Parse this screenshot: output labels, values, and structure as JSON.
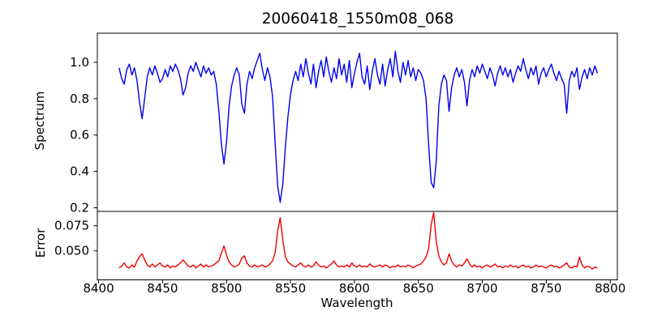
{
  "figure": {
    "background": "#ffffff",
    "frame_color": "#000000",
    "text_color": "#000000"
  },
  "chart_data": {
    "type": "line",
    "title": "20060418_1550m08_068",
    "xlabel": "Wavelength",
    "grid": false,
    "legend": "none",
    "xlim": [
      8399,
      8805.6
    ],
    "xticks": [
      8400,
      8450,
      8500,
      8550,
      8600,
      8650,
      8700,
      8750,
      8800
    ],
    "x_start": 8416,
    "x_step": 2,
    "x_end": 8790,
    "panels": [
      {
        "name": "spectrum",
        "ylabel": "Spectrum",
        "color": "#0000ee",
        "ylim": [
          0.18,
          1.16
        ],
        "yticks": [
          1.0,
          0.8,
          0.6,
          0.4,
          0.2
        ],
        "ytick_labels": [
          "1.0",
          "0.8",
          "0.6",
          "0.4",
          "0.2"
        ],
        "absorption_line_centers": [
          8434,
          8466,
          8498,
          8513,
          8542,
          8662,
          8674,
          8688,
          8766
        ],
        "values": [
          0.97,
          0.91,
          0.88,
          0.96,
          0.99,
          0.93,
          0.97,
          0.9,
          0.78,
          0.69,
          0.8,
          0.92,
          0.97,
          0.93,
          0.98,
          0.94,
          0.89,
          0.91,
          0.96,
          0.92,
          0.98,
          0.95,
          0.99,
          0.96,
          0.91,
          0.82,
          0.86,
          0.94,
          0.98,
          0.95,
          1.0,
          0.96,
          0.92,
          0.98,
          0.94,
          0.97,
          0.93,
          0.95,
          0.88,
          0.73,
          0.55,
          0.44,
          0.56,
          0.76,
          0.87,
          0.93,
          0.97,
          0.93,
          0.77,
          0.72,
          0.88,
          0.95,
          0.91,
          0.97,
          1.01,
          1.05,
          0.96,
          0.9,
          0.97,
          0.92,
          0.81,
          0.56,
          0.32,
          0.23,
          0.33,
          0.53,
          0.7,
          0.82,
          0.9,
          0.95,
          0.9,
          0.99,
          0.92,
          1.02,
          0.94,
          0.88,
          0.99,
          0.86,
          0.95,
          1.01,
          0.92,
          1.03,
          0.95,
          0.89,
          0.97,
          0.91,
          1.02,
          0.93,
          0.99,
          0.89,
          1.01,
          0.86,
          0.94,
          1.0,
          1.05,
          0.92,
          0.88,
          0.98,
          0.85,
          0.95,
          1.02,
          0.93,
          0.88,
          0.99,
          0.87,
          0.96,
          1.02,
          0.92,
          1.06,
          0.95,
          0.89,
          1.0,
          0.93,
          1.01,
          0.92,
          0.97,
          0.9,
          0.96,
          0.94,
          0.9,
          0.8,
          0.55,
          0.34,
          0.31,
          0.46,
          0.76,
          0.88,
          0.93,
          0.9,
          0.73,
          0.86,
          0.93,
          0.97,
          0.92,
          0.96,
          0.89,
          0.76,
          0.9,
          0.96,
          0.92,
          0.98,
          0.94,
          0.99,
          0.95,
          0.91,
          0.97,
          0.93,
          0.87,
          0.94,
          0.98,
          0.93,
          0.97,
          0.92,
          0.96,
          0.89,
          0.94,
          0.98,
          0.95,
          1.02,
          0.96,
          0.91,
          0.97,
          0.93,
          0.98,
          0.88,
          0.94,
          0.97,
          0.92,
          0.96,
          0.99,
          0.94,
          0.9,
          0.95,
          0.91,
          0.88,
          0.72,
          0.9,
          0.95,
          0.92,
          0.97,
          0.85,
          0.92,
          0.96,
          0.91,
          0.97,
          0.93,
          0.98,
          0.94
        ]
      },
      {
        "name": "error",
        "ylabel": "Error",
        "color": "#ee0000",
        "ylim": [
          0.0212,
          0.0892
        ],
        "yticks": [
          0.075,
          0.05
        ],
        "ytick_labels": [
          "0.075",
          "0.050"
        ],
        "peak_centers": [
          8434,
          8498,
          8542,
          8662,
          8776
        ],
        "values": [
          0.033,
          0.035,
          0.038,
          0.034,
          0.033,
          0.036,
          0.034,
          0.04,
          0.044,
          0.047,
          0.041,
          0.036,
          0.034,
          0.037,
          0.034,
          0.036,
          0.038,
          0.035,
          0.034,
          0.036,
          0.033,
          0.035,
          0.034,
          0.036,
          0.038,
          0.041,
          0.038,
          0.035,
          0.034,
          0.036,
          0.033,
          0.035,
          0.037,
          0.034,
          0.036,
          0.034,
          0.035,
          0.036,
          0.038,
          0.04,
          0.048,
          0.055,
          0.046,
          0.039,
          0.036,
          0.034,
          0.035,
          0.037,
          0.043,
          0.045,
          0.038,
          0.035,
          0.034,
          0.036,
          0.034,
          0.035,
          0.036,
          0.034,
          0.035,
          0.037,
          0.04,
          0.048,
          0.07,
          0.083,
          0.061,
          0.044,
          0.039,
          0.037,
          0.035,
          0.034,
          0.036,
          0.038,
          0.035,
          0.034,
          0.036,
          0.034,
          0.035,
          0.039,
          0.036,
          0.034,
          0.035,
          0.033,
          0.035,
          0.037,
          0.04,
          0.036,
          0.034,
          0.035,
          0.034,
          0.036,
          0.034,
          0.038,
          0.035,
          0.034,
          0.036,
          0.034,
          0.035,
          0.034,
          0.037,
          0.035,
          0.034,
          0.035,
          0.036,
          0.034,
          0.036,
          0.035,
          0.033,
          0.035,
          0.034,
          0.036,
          0.034,
          0.035,
          0.034,
          0.036,
          0.035,
          0.033,
          0.035,
          0.036,
          0.037,
          0.04,
          0.044,
          0.052,
          0.076,
          0.088,
          0.059,
          0.045,
          0.039,
          0.036,
          0.038,
          0.047,
          0.04,
          0.036,
          0.034,
          0.036,
          0.035,
          0.038,
          0.042,
          0.037,
          0.034,
          0.036,
          0.034,
          0.035,
          0.033,
          0.035,
          0.036,
          0.034,
          0.035,
          0.037,
          0.034,
          0.035,
          0.033,
          0.035,
          0.034,
          0.036,
          0.034,
          0.035,
          0.033,
          0.035,
          0.036,
          0.034,
          0.035,
          0.033,
          0.034,
          0.036,
          0.034,
          0.035,
          0.034,
          0.033,
          0.035,
          0.036,
          0.034,
          0.035,
          0.033,
          0.034,
          0.036,
          0.038,
          0.034,
          0.033,
          0.035,
          0.034,
          0.044,
          0.036,
          0.033,
          0.035,
          0.034,
          0.032,
          0.034,
          0.033
        ]
      }
    ]
  }
}
